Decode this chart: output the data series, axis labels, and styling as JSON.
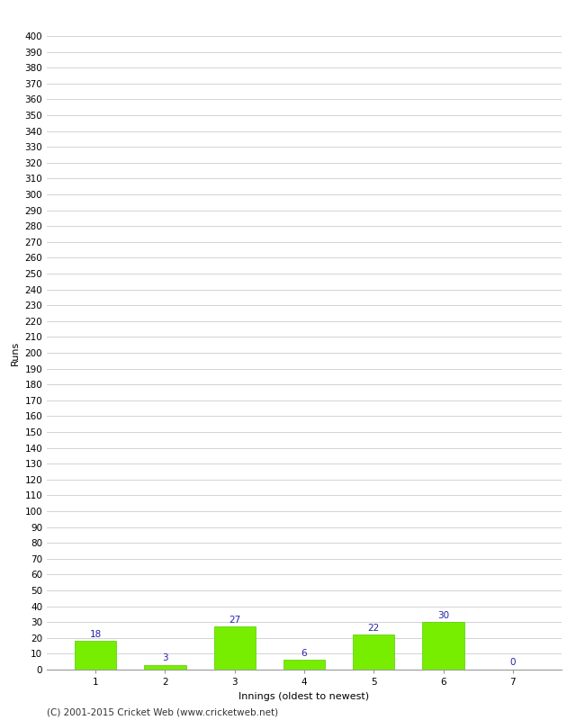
{
  "title": "",
  "xlabel": "Innings (oldest to newest)",
  "ylabel": "Runs",
  "categories": [
    "1",
    "2",
    "3",
    "4",
    "5",
    "6",
    "7"
  ],
  "values": [
    18,
    3,
    27,
    6,
    22,
    30,
    0
  ],
  "bar_color": "#77ee00",
  "bar_edge_color": "#55cc00",
  "value_label_color": "#2222aa",
  "ytick_step": 10,
  "ymin": 0,
  "ymax": 400,
  "background_color": "#ffffff",
  "grid_color": "#cccccc",
  "footer_text": "(C) 2001-2015 Cricket Web (www.cricketweb.net)",
  "value_fontsize": 7.5,
  "axis_label_fontsize": 8,
  "tick_fontsize": 7.5,
  "footer_fontsize": 7.5
}
